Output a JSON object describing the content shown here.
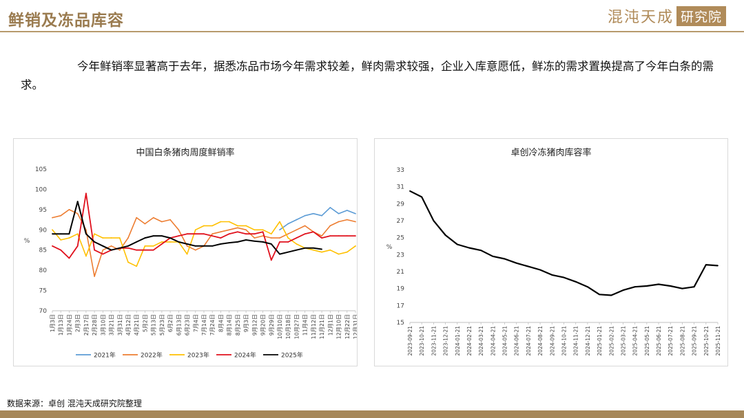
{
  "header": {
    "title": "鲜销及冻品库容",
    "logo_text": "混沌天成",
    "logo_box": "研究院"
  },
  "paragraph": "今年鲜销率显著高于去年，据悉冻品市场今年需求较差，鲜肉需求较强，企业入库意愿低，鲜冻的需求置换提高了今年白条的需求。",
  "source": "数据来源：卓创  混沌天成研究院整理",
  "colors": {
    "accent": "#b08b59",
    "2021": "#5b9bd5",
    "2022": "#ed7d31",
    "2023": "#ffc000",
    "2024": "#e0101c",
    "2025": "#000000"
  },
  "chart_data": [
    {
      "type": "line",
      "title": "中国白条猪肉周度鲜销率",
      "ylabel": "%",
      "ylim": [
        70,
        105
      ],
      "yticks": [
        70,
        75,
        80,
        85,
        90,
        95,
        100,
        105
      ],
      "x": [
        "1月3日",
        "1月13日",
        "1月24日",
        "2月3日",
        "2月17日",
        "2月28日",
        "3月10日",
        "3月21日",
        "3月31日",
        "4月12日",
        "4月21日",
        "5月2日",
        "5月13日",
        "5月23日",
        "6月2日",
        "6月13日",
        "6月23日",
        "7月4日",
        "7月14日",
        "7月24日",
        "8月4日",
        "8月14日",
        "8月25日",
        "9月3日",
        "9月12日",
        "9月20日",
        "9月29日",
        "10月10日",
        "10月18日",
        "10月27日",
        "11月4日",
        "11月12日",
        "11月21日",
        "12月1日",
        "12月10日",
        "12月22日",
        "12月31日"
      ],
      "series": [
        {
          "name": "2021年",
          "values": [
            null,
            null,
            null,
            null,
            null,
            null,
            null,
            null,
            null,
            null,
            null,
            null,
            null,
            null,
            null,
            null,
            null,
            null,
            null,
            null,
            null,
            null,
            null,
            null,
            null,
            null,
            null,
            90.0,
            91.5,
            92.5,
            93.5,
            94.0,
            93.5,
            95.5,
            94.0,
            94.8,
            94.0
          ]
        },
        {
          "name": "2022年",
          "values": [
            93.0,
            93.5,
            95.0,
            94.0,
            90.0,
            78.5,
            85.0,
            86.0,
            85.0,
            88.0,
            93.0,
            91.5,
            93.0,
            92.0,
            92.5,
            90.0,
            86.0,
            85.0,
            86.0,
            89.0,
            89.5,
            90.0,
            90.5,
            90.0,
            88.0,
            88.5,
            88.0,
            88.0,
            89.0,
            90.0,
            91.0,
            89.5,
            88.5,
            91.0,
            92.0,
            92.5,
            92.0
          ]
        },
        {
          "name": "2023年",
          "values": [
            90.0,
            87.5,
            88.0,
            89.0,
            83.5,
            89.0,
            88.0,
            88.0,
            88.0,
            82.0,
            81.0,
            86.0,
            86.0,
            87.0,
            87.0,
            87.0,
            84.0,
            90.0,
            91.0,
            91.0,
            92.0,
            92.0,
            91.0,
            91.0,
            90.0,
            90.0,
            89.0,
            92.0,
            88.0,
            86.5,
            85.5,
            85.0,
            84.5,
            85.0,
            84.0,
            84.5,
            86.0
          ]
        },
        {
          "name": "2024年",
          "values": [
            86.0,
            85.0,
            83.0,
            86.0,
            99.0,
            85.0,
            84.0,
            85.0,
            85.5,
            85.5,
            85.0,
            85.0,
            85.0,
            86.5,
            88.0,
            88.5,
            89.0,
            89.0,
            89.0,
            88.5,
            88.0,
            89.0,
            89.5,
            89.0,
            89.0,
            89.5,
            82.5,
            87.0,
            87.0,
            88.0,
            89.0,
            89.5,
            88.0,
            88.5,
            88.5,
            88.5,
            88.5
          ]
        },
        {
          "name": "2025年",
          "values": [
            89.0,
            89.0,
            89.0,
            97.0,
            89.0,
            87.0,
            86.0,
            85.0,
            85.5,
            86.0,
            87.0,
            88.0,
            88.5,
            88.5,
            88.0,
            87.0,
            86.5,
            86.0,
            86.0,
            86.0,
            86.5,
            86.8,
            87.0,
            87.5,
            87.2,
            87.0,
            86.5,
            84.0,
            84.5,
            85.0,
            85.5,
            85.5,
            85.2,
            null,
            null,
            null,
            null
          ]
        }
      ]
    },
    {
      "type": "line",
      "title": "卓创冷冻猪肉库容率",
      "ylabel": "%",
      "ylim": [
        15,
        33
      ],
      "yticks": [
        15,
        17,
        19,
        21,
        23,
        25,
        27,
        29,
        31,
        33
      ],
      "x": [
        "2023-09-21",
        "2023-10-21",
        "2023-11-21",
        "2023-12-21",
        "2024-01-21",
        "2024-02-21",
        "2024-03-21",
        "2024-04-21",
        "2024-05-21",
        "2024-06-21",
        "2024-07-21",
        "2024-08-21",
        "2024-09-21",
        "2024-10-21",
        "2024-11-21",
        "2024-12-21",
        "2025-01-21",
        "2025-02-21",
        "2025-03-21",
        "2025-04-21",
        "2025-05-21",
        "2025-06-21",
        "2025-07-21",
        "2025-08-21",
        "2025-09-21",
        "2025-10-21",
        "2025-11-21"
      ],
      "series": [
        {
          "name": "",
          "values": [
            30.5,
            29.8,
            27.0,
            25.3,
            24.2,
            23.8,
            23.5,
            22.8,
            22.5,
            22.0,
            21.6,
            21.2,
            20.6,
            20.3,
            19.8,
            19.2,
            18.3,
            18.2,
            18.8,
            19.2,
            19.3,
            19.5,
            19.3,
            19.0,
            19.2,
            21.8,
            21.7
          ]
        }
      ]
    }
  ]
}
